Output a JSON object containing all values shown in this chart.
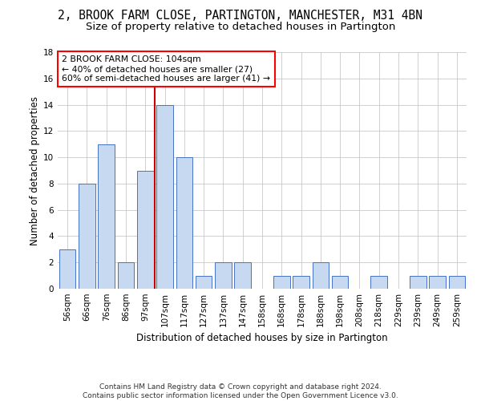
{
  "title": "2, BROOK FARM CLOSE, PARTINGTON, MANCHESTER, M31 4BN",
  "subtitle": "Size of property relative to detached houses in Partington",
  "xlabel": "Distribution of detached houses by size in Partington",
  "ylabel": "Number of detached properties",
  "footnote1": "Contains HM Land Registry data © Crown copyright and database right 2024.",
  "footnote2": "Contains public sector information licensed under the Open Government Licence v3.0.",
  "annotation_line1": "2 BROOK FARM CLOSE: 104sqm",
  "annotation_line2": "← 40% of detached houses are smaller (27)",
  "annotation_line3": "60% of semi-detached houses are larger (41) →",
  "bar_labels": [
    "56sqm",
    "66sqm",
    "76sqm",
    "86sqm",
    "97sqm",
    "107sqm",
    "117sqm",
    "127sqm",
    "137sqm",
    "147sqm",
    "158sqm",
    "168sqm",
    "178sqm",
    "188sqm",
    "198sqm",
    "208sqm",
    "218sqm",
    "229sqm",
    "239sqm",
    "249sqm",
    "259sqm"
  ],
  "bar_values": [
    3,
    8,
    11,
    2,
    9,
    14,
    10,
    1,
    2,
    2,
    0,
    1,
    1,
    2,
    1,
    0,
    1,
    0,
    1,
    1,
    1
  ],
  "bar_color": "#c6d9f1",
  "bar_edge_color": "#4472c4",
  "vline_bar_index": 5,
  "ylim": [
    0,
    18
  ],
  "yticks": [
    0,
    2,
    4,
    6,
    8,
    10,
    12,
    14,
    16,
    18
  ],
  "grid_color": "#c8c8c8",
  "vline_color": "#cc0000",
  "title_fontsize": 10.5,
  "subtitle_fontsize": 9.5,
  "xlabel_fontsize": 8.5,
  "ylabel_fontsize": 8.5,
  "tick_fontsize": 7.5,
  "annot_fontsize": 7.8,
  "footnote_fontsize": 6.5
}
